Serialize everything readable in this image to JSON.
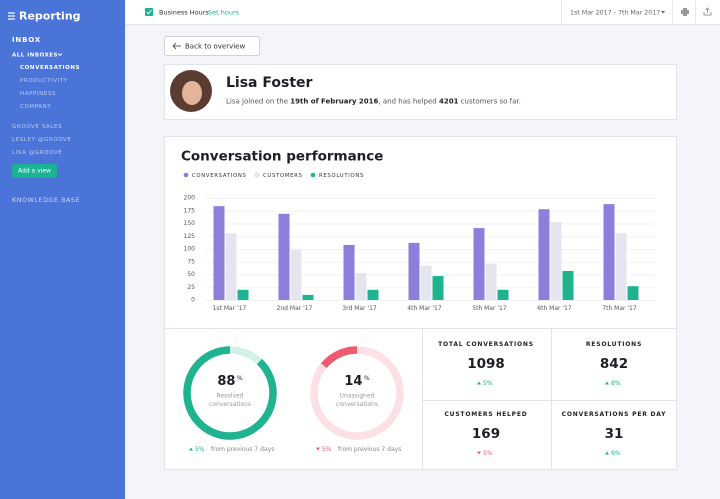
{
  "sidebar": {
    "title": "Reporting",
    "inbox": "INBOX",
    "all_inboxes": "ALL INBOXES",
    "inbox_views": [
      "CONVERSATIONS",
      "PRODUCTIVITY",
      "HAPPINESS",
      "COMPANY"
    ],
    "other_inboxes": [
      "GROOVE SALES",
      "LESLEY @GROOVE",
      "LISA @GROOVE"
    ],
    "add_view": "Add a view",
    "knowledge_base": "KNOWLEDGE BASE"
  },
  "topbar": {
    "business_hours": "Business Hours",
    "set_hours": "Set hours",
    "date_range": "1st Mar 2017 - 7th Mar 2017"
  },
  "back": "Back to overview",
  "profile": {
    "name": "Lisa Foster",
    "bio_parts": [
      "Lisa joined on the ",
      "19th of February 2016",
      ", and has helped ",
      "4201",
      " customers so far."
    ]
  },
  "chart_data": {
    "type": "bar",
    "title": "Conversation performance",
    "categories": [
      "1st Mar '17",
      "2nd Mar '17",
      "3rd Mar '17",
      "4th Mar '17",
      "5th Mar '17",
      "6th Mar '17",
      "7th Mar '17"
    ],
    "series": [
      {
        "name": "CONVERSATIONS",
        "color": "#8c7fdc",
        "values": [
          184,
          169,
          108,
          112,
          141,
          178,
          188
        ]
      },
      {
        "name": "CUSTOMERS",
        "color": "#e4e5ee",
        "values": [
          131,
          98,
          53,
          67,
          71,
          153,
          131
        ]
      },
      {
        "name": "RESOLUTIONS",
        "color": "#1fb48f",
        "values": [
          20,
          10,
          20,
          47,
          20,
          57,
          27
        ]
      }
    ],
    "ylim": [
      0,
      200
    ],
    "yticks": [
      0,
      25,
      50,
      75,
      100,
      125,
      150,
      175,
      200
    ],
    "grid": true
  },
  "donuts": [
    {
      "value": 88,
      "unit": "%",
      "label": [
        "Resolved",
        "conversations"
      ],
      "change": "5%",
      "direction": "up",
      "comparison": "from previous 7 days",
      "color": "#1fb48f",
      "track": "#d3f1e8"
    },
    {
      "value": 14,
      "unit": "%",
      "label": [
        "Unassigned",
        "conversations"
      ],
      "change": "5%",
      "direction": "down",
      "comparison": "from previous 7 days",
      "color": "#ef5b6e",
      "track": "#fde0e3"
    }
  ],
  "stats": [
    {
      "title": "TOTAL CONVERSATIONS",
      "value": 1098,
      "change": "5%",
      "direction": "up"
    },
    {
      "title": "RESOLUTIONS",
      "value": 842,
      "change": "8%",
      "direction": "up"
    },
    {
      "title": "CUSTOMERS HELPED",
      "value": 169,
      "change": "5%",
      "direction": "down"
    },
    {
      "title": "CONVERSATIONS PER DAY",
      "value": 31,
      "change": "6%",
      "direction": "up"
    }
  ]
}
